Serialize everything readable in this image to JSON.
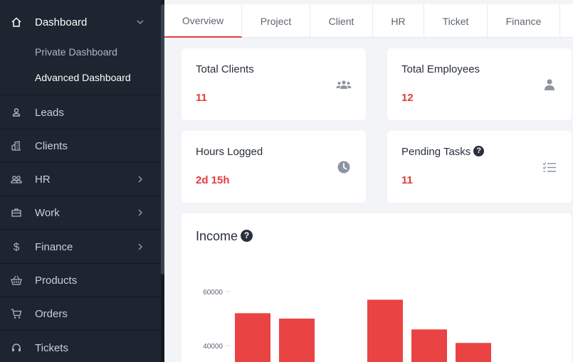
{
  "sidebar": {
    "items": [
      {
        "label": "Dashboard",
        "icon": "home-icon"
      },
      {
        "label": "Leads",
        "icon": "user-icon"
      },
      {
        "label": "Clients",
        "icon": "building-icon"
      },
      {
        "label": "HR",
        "icon": "users-icon"
      },
      {
        "label": "Work",
        "icon": "briefcase-icon"
      },
      {
        "label": "Finance",
        "icon": "dollar-icon"
      },
      {
        "label": "Products",
        "icon": "basket-icon"
      },
      {
        "label": "Orders",
        "icon": "cart-icon"
      },
      {
        "label": "Tickets",
        "icon": "headset-icon"
      }
    ],
    "dashboard_sub": [
      "Private Dashboard",
      "Advanced Dashboard"
    ]
  },
  "tabs": [
    "Overview",
    "Project",
    "Client",
    "HR",
    "Ticket",
    "Finance"
  ],
  "cards": [
    {
      "title": "Total Clients",
      "value": "11",
      "icon": "users-group-icon"
    },
    {
      "title": "Total Employees",
      "value": "12",
      "icon": "person-icon"
    },
    {
      "title": "Hours Logged",
      "value": "2d 15h",
      "icon": "clock-icon"
    },
    {
      "title": "Pending Tasks",
      "value": "11",
      "icon": "checklist-icon"
    }
  ],
  "income": {
    "title": "Income"
  },
  "chart_data": {
    "type": "bar",
    "title": "Income",
    "yticks": [
      "60000",
      "40000"
    ],
    "ylim_visible": [
      35000,
      60000
    ],
    "values": [
      52000,
      50000,
      0,
      57000,
      46000,
      41000
    ],
    "color": "#ea4343"
  },
  "colors": {
    "accent": "#e33b3b",
    "sidebar_bg": "#1d2530"
  }
}
